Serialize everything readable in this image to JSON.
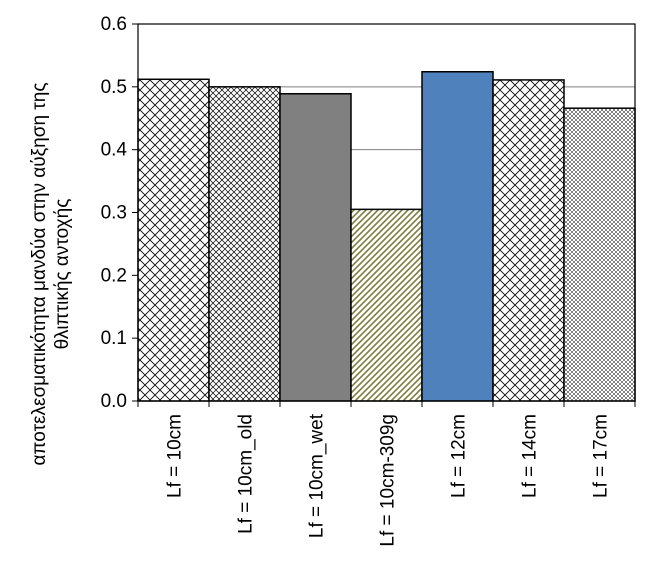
{
  "chart_data": {
    "type": "bar",
    "title": "",
    "xlabel": "",
    "ylabel_lines": [
      "αποτελεσματικότητα μανδύα στην αύξηση της",
      "θλιπτικής αντοχής"
    ],
    "ylim": [
      0,
      0.6
    ],
    "yticks": [
      "0.0",
      "0.1",
      "0.2",
      "0.3",
      "0.4",
      "0.5",
      "0.6"
    ],
    "ytick_values": [
      0,
      0.1,
      0.2,
      0.3,
      0.4,
      0.5,
      0.6
    ],
    "grid": true,
    "legend": "none",
    "categories": [
      "Lf = 10cm",
      "Lf = 10cm_old",
      "Lf = 10cm_wet",
      "Lf = 10cm-309g",
      "Lf = 12cm",
      "Lf = 14cm",
      "Lf = 17cm"
    ],
    "values": [
      0.512,
      0.5,
      0.489,
      0.305,
      0.524,
      0.511,
      0.466
    ],
    "bar_styles": [
      "diag-cross",
      "fine-cross",
      "solid-gray",
      "olive-diag",
      "solid-blue",
      "diag-cross",
      "fine-dots"
    ],
    "colors": {
      "gray": "#808080",
      "blue": "#4f81bd",
      "olive": "#7f7f3f",
      "grid": "#7f7f7f",
      "outline": "#000000"
    }
  }
}
